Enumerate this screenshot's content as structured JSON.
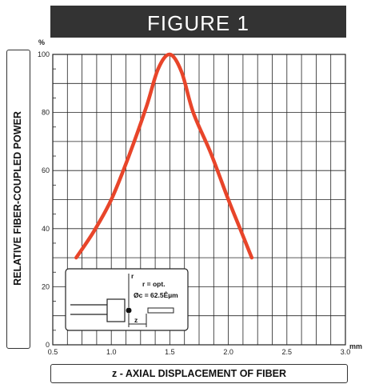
{
  "chart_data": {
    "type": "line",
    "title": "FIGURE 1",
    "xlabel": "z - AXIAL DISPLACEMENT OF FIBER",
    "ylabel": "RELATIVE FIBER-COUPLED POWER",
    "x_unit": "mm",
    "y_unit": "%",
    "xlim": [
      0.5,
      3.0
    ],
    "ylim": [
      0,
      100
    ],
    "x_ticks": [
      "0.5",
      "1.0",
      "1.5",
      "2.0",
      "2.5",
      "3.0"
    ],
    "y_ticks": [
      "0",
      "20",
      "40",
      "60",
      "80",
      "100"
    ],
    "grid": true,
    "color": "#e8452a",
    "series": [
      {
        "x": [
          0.7,
          0.85,
          1.0,
          1.15,
          1.3,
          1.4,
          1.5,
          1.6,
          1.7,
          1.85,
          2.0,
          2.1,
          2.2
        ],
        "y": [
          30,
          39,
          50,
          65,
          82,
          95,
          100,
          94,
          80,
          66,
          50,
          40,
          30
        ]
      }
    ],
    "inset": {
      "label_r": "r",
      "label_opt": "r = opt.",
      "label_dia": "Øc = 62.5Êµm",
      "label_z": "z"
    }
  }
}
